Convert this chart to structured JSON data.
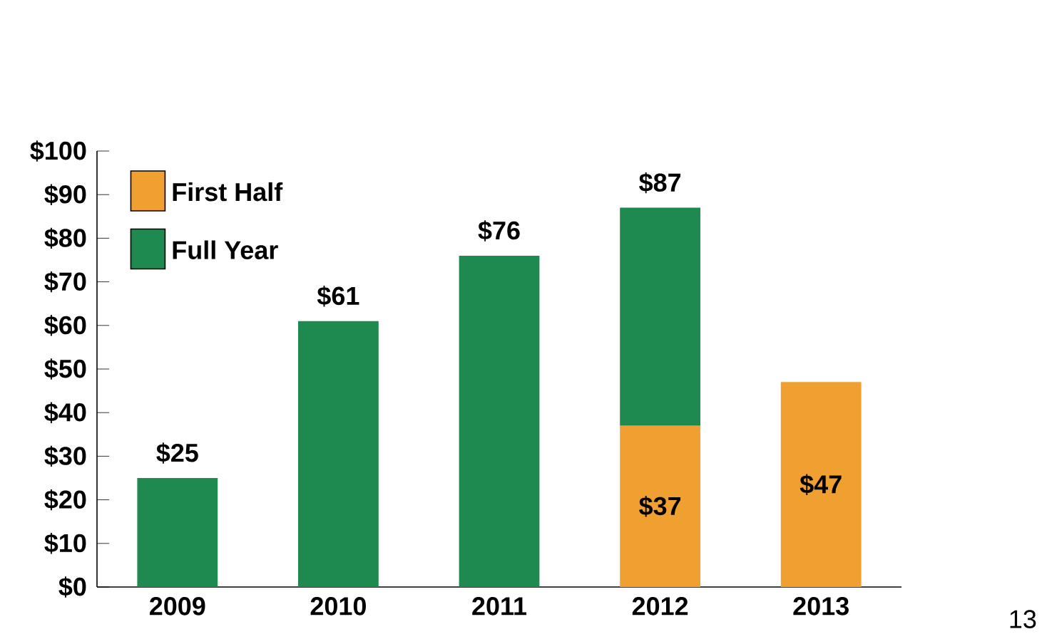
{
  "chart_data": {
    "type": "bar",
    "stacked": true,
    "categories": [
      "2009",
      "2010",
      "2011",
      "2012",
      "2013"
    ],
    "series": [
      {
        "name": "First Half",
        "color": "#f0a030",
        "values": [
          null,
          null,
          null,
          37,
          47
        ],
        "value_labels": [
          null,
          null,
          null,
          "$37",
          "$47"
        ]
      },
      {
        "name": "Full Year",
        "color": "#1e8a50",
        "values": [
          25,
          61,
          76,
          50,
          null
        ],
        "value_labels": [
          "$25",
          "$61",
          "$76",
          null,
          null
        ]
      }
    ],
    "ylim": [
      0,
      100
    ],
    "yticks": [
      {
        "value": 0,
        "label": "$0"
      },
      {
        "value": 10,
        "label": "$10"
      },
      {
        "value": 20,
        "label": "$20"
      },
      {
        "value": 30,
        "label": "$30"
      },
      {
        "value": 40,
        "label": "$40"
      },
      {
        "value": 50,
        "label": "$50"
      },
      {
        "value": 60,
        "label": "$60"
      },
      {
        "value": 70,
        "label": "$70"
      },
      {
        "value": 80,
        "label": "$80"
      },
      {
        "value": 90,
        "label": "$90"
      },
      {
        "value": 100,
        "label": "$100"
      }
    ],
    "legend": "top left",
    "grid": false,
    "annotations": [
      {
        "text": "$87",
        "x": "2012",
        "y": 87
      },
      "13"
    ]
  }
}
